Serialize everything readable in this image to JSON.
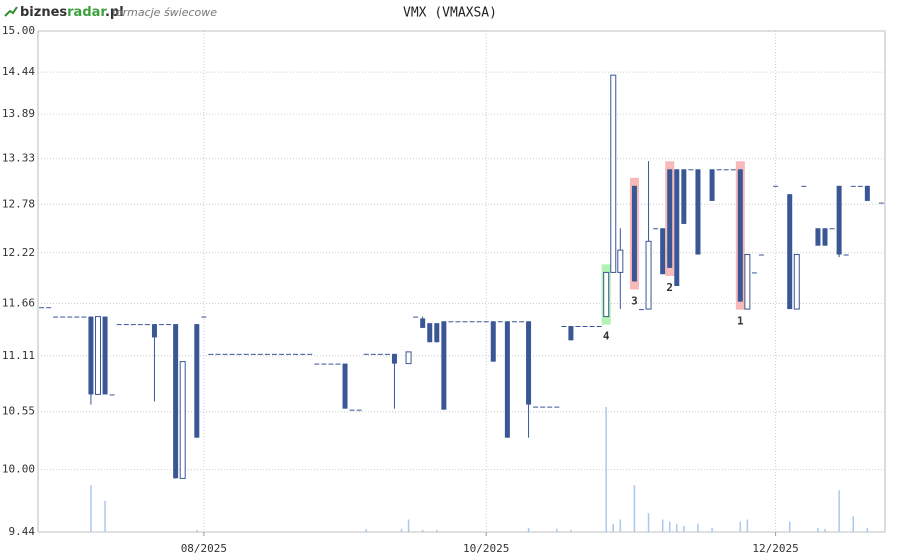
{
  "header": {
    "logo": [
      "biznes",
      "radar",
      ".pl"
    ],
    "subtitle": "formacje świecowe"
  },
  "chart_data": {
    "type": "candlestick",
    "title": "VMX (VMAXSA)",
    "yscale": "log",
    "ylim": [
      9.44,
      15.0
    ],
    "yticks": [
      {
        "value": 15.0,
        "label": "15.00"
      },
      {
        "value": 14.44,
        "label": "14.44"
      },
      {
        "value": 13.89,
        "label": "13.89"
      },
      {
        "value": 13.33,
        "label": "13.33"
      },
      {
        "value": 12.78,
        "label": "12.78"
      },
      {
        "value": 12.22,
        "label": "12.22"
      },
      {
        "value": 11.66,
        "label": "11.66"
      },
      {
        "value": 11.11,
        "label": "11.11"
      },
      {
        "value": 10.55,
        "label": "10.55"
      },
      {
        "value": 10.0,
        "label": "10.00"
      },
      {
        "value": 9.44,
        "label": "9.44"
      }
    ],
    "grid": true,
    "color": "#3a5795",
    "volume_color": "#a9c9ee",
    "categories": [
      null,
      null,
      null,
      null,
      null,
      null,
      null,
      null,
      null,
      null,
      null,
      null,
      null,
      null,
      null,
      null,
      null,
      null,
      null,
      null,
      null,
      null,
      null,
      "08/2025",
      null,
      null,
      null,
      null,
      null,
      null,
      null,
      null,
      null,
      null,
      null,
      null,
      null,
      null,
      null,
      null,
      null,
      null,
      null,
      null,
      null,
      null,
      null,
      null,
      null,
      null,
      null,
      null,
      null,
      null,
      null,
      null,
      null,
      null,
      null,
      null,
      null,
      null,
      null,
      "10/2025",
      null,
      null,
      null,
      null,
      null,
      null,
      null,
      null,
      null,
      null,
      null,
      null,
      null,
      null,
      null,
      null,
      null,
      null,
      null,
      null,
      null,
      null,
      null,
      null,
      null,
      null,
      null,
      null,
      null,
      null,
      null,
      null,
      null,
      null,
      null,
      null,
      null,
      null,
      null,
      null,
      "12/2025",
      null,
      null,
      null,
      null,
      null,
      null,
      null,
      null,
      null,
      null,
      null,
      null,
      null,
      null,
      null
    ],
    "ohlc": [
      [
        11.62,
        11.62,
        11.62,
        11.62
      ],
      [
        11.62,
        11.62,
        11.62,
        11.62
      ],
      [
        11.52,
        11.52,
        11.52,
        11.52
      ],
      [
        11.52,
        11.52,
        11.52,
        11.52
      ],
      [
        11.52,
        11.52,
        11.52,
        11.52
      ],
      [
        11.52,
        11.52,
        11.52,
        11.52
      ],
      [
        11.52,
        11.52,
        11.52,
        11.52
      ],
      [
        11.52,
        11.52,
        10.62,
        10.72
      ],
      [
        10.72,
        11.52,
        10.72,
        11.52
      ],
      [
        11.52,
        11.52,
        10.72,
        10.72
      ],
      [
        10.72,
        10.72,
        10.72,
        10.72
      ],
      [
        11.44,
        11.44,
        11.44,
        11.44
      ],
      [
        11.44,
        11.44,
        11.44,
        11.44
      ],
      [
        11.44,
        11.44,
        11.44,
        11.44
      ],
      [
        11.44,
        11.44,
        11.44,
        11.44
      ],
      [
        11.44,
        11.44,
        11.44,
        11.44
      ],
      [
        11.44,
        11.44,
        10.65,
        11.3
      ],
      [
        11.44,
        11.44,
        11.44,
        11.44
      ],
      [
        11.44,
        11.44,
        11.44,
        11.44
      ],
      [
        11.44,
        11.44,
        9.92,
        9.92
      ],
      [
        9.92,
        11.05,
        9.92,
        11.05
      ],
      null,
      [
        11.44,
        11.44,
        10.3,
        10.3
      ],
      [
        11.52,
        11.52,
        11.52,
        11.52
      ],
      [
        11.13,
        11.13,
        11.13,
        11.13
      ],
      [
        11.13,
        11.13,
        11.13,
        11.13
      ],
      [
        11.13,
        11.13,
        11.13,
        11.13
      ],
      [
        11.13,
        11.13,
        11.13,
        11.13
      ],
      [
        11.13,
        11.13,
        11.13,
        11.13
      ],
      [
        11.13,
        11.13,
        11.13,
        11.13
      ],
      [
        11.13,
        11.13,
        11.13,
        11.13
      ],
      [
        11.13,
        11.13,
        11.13,
        11.13
      ],
      [
        11.13,
        11.13,
        11.13,
        11.13
      ],
      [
        11.13,
        11.13,
        11.13,
        11.13
      ],
      [
        11.13,
        11.13,
        11.13,
        11.13
      ],
      [
        11.13,
        11.13,
        11.13,
        11.13
      ],
      [
        11.13,
        11.13,
        11.13,
        11.13
      ],
      [
        11.13,
        11.13,
        11.13,
        11.13
      ],
      [
        11.13,
        11.13,
        11.13,
        11.13
      ],
      [
        11.03,
        11.03,
        11.03,
        11.03
      ],
      [
        11.03,
        11.03,
        11.03,
        11.03
      ],
      [
        11.03,
        11.03,
        11.03,
        11.03
      ],
      [
        11.03,
        11.03,
        11.03,
        11.03
      ],
      [
        11.03,
        11.03,
        10.58,
        10.58
      ],
      [
        10.57,
        10.57,
        10.57,
        10.57
      ],
      [
        10.57,
        10.57,
        10.57,
        10.57
      ],
      [
        11.13,
        11.13,
        11.13,
        11.13
      ],
      [
        11.13,
        11.13,
        11.13,
        11.13
      ],
      [
        11.13,
        11.13,
        11.13,
        11.13
      ],
      [
        11.13,
        11.13,
        11.13,
        11.13
      ],
      [
        11.13,
        11.13,
        10.58,
        11.03
      ],
      null,
      [
        11.03,
        11.15,
        11.03,
        11.15
      ],
      [
        11.52,
        11.52,
        11.52,
        11.52
      ],
      [
        11.5,
        11.52,
        11.4,
        11.4
      ],
      [
        11.45,
        11.45,
        11.25,
        11.25
      ],
      [
        11.45,
        11.45,
        11.25,
        11.25
      ],
      [
        11.47,
        11.47,
        10.57,
        10.57
      ],
      [
        11.47,
        11.47,
        11.47,
        11.47
      ],
      [
        11.47,
        11.47,
        11.47,
        11.47
      ],
      [
        11.47,
        11.47,
        11.47,
        11.47
      ],
      [
        11.47,
        11.47,
        11.47,
        11.47
      ],
      [
        11.47,
        11.47,
        11.47,
        11.47
      ],
      [
        11.47,
        11.47,
        11.47,
        11.47
      ],
      [
        11.47,
        11.47,
        11.05,
        11.05
      ],
      [
        11.47,
        11.47,
        11.47,
        11.47
      ],
      [
        11.47,
        11.47,
        10.3,
        10.3
      ],
      [
        11.47,
        11.47,
        11.47,
        11.47
      ],
      [
        11.47,
        11.47,
        11.47,
        11.47
      ],
      [
        11.47,
        11.47,
        10.3,
        10.62
      ],
      [
        10.6,
        10.6,
        10.6,
        10.6
      ],
      [
        10.6,
        10.6,
        10.6,
        10.6
      ],
      [
        10.6,
        10.6,
        10.6,
        10.6
      ],
      [
        10.6,
        10.6,
        10.6,
        10.6
      ],
      [
        11.42,
        11.42,
        11.42,
        11.42
      ],
      [
        11.42,
        11.42,
        11.27,
        11.27
      ],
      [
        11.42,
        11.42,
        11.42,
        11.42
      ],
      [
        11.42,
        11.42,
        11.42,
        11.42
      ],
      [
        11.42,
        11.42,
        11.42,
        11.42
      ],
      [
        11.42,
        11.42,
        11.42,
        11.42
      ],
      [
        11.52,
        12.0,
        11.52,
        12.0
      ],
      [
        12.0,
        14.4,
        12.0,
        14.4
      ],
      [
        12.0,
        12.5,
        11.6,
        12.25
      ],
      null,
      [
        13.0,
        13.0,
        11.9,
        11.9
      ],
      [
        11.6,
        11.6,
        11.6,
        11.6
      ],
      [
        11.6,
        13.3,
        11.6,
        12.35
      ],
      [
        12.5,
        12.5,
        12.5,
        12.5
      ],
      [
        12.5,
        12.5,
        11.98,
        11.98
      ],
      [
        13.2,
        13.2,
        12.05,
        12.05
      ],
      [
        13.2,
        13.2,
        11.85,
        11.85
      ],
      [
        13.2,
        13.2,
        12.55,
        12.55
      ],
      [
        13.2,
        13.2,
        13.2,
        13.2
      ],
      [
        13.2,
        13.2,
        12.2,
        12.2
      ],
      null,
      [
        13.2,
        13.2,
        12.82,
        12.82
      ],
      [
        13.2,
        13.2,
        13.2,
        13.2
      ],
      [
        13.2,
        13.2,
        13.2,
        13.2
      ],
      [
        13.2,
        13.2,
        13.2,
        13.2
      ],
      [
        13.2,
        13.2,
        11.68,
        11.68
      ],
      [
        11.6,
        12.2,
        11.6,
        12.2
      ],
      [
        12.0,
        12.0,
        12.0,
        12.0
      ],
      [
        12.2,
        12.2,
        12.2,
        12.2
      ],
      null,
      [
        13.0,
        13.0,
        13.0,
        13.0
      ],
      null,
      [
        12.9,
        12.9,
        11.6,
        11.6
      ],
      [
        11.6,
        12.2,
        11.6,
        12.2
      ],
      [
        13.0,
        13.0,
        13.0,
        13.0
      ],
      null,
      [
        12.5,
        12.5,
        12.3,
        12.3
      ],
      [
        12.5,
        12.5,
        12.3,
        12.3
      ],
      [
        12.5,
        12.5,
        12.5,
        12.5
      ],
      [
        13.0,
        13.0,
        12.17,
        12.2
      ],
      [
        12.2,
        12.2,
        12.2,
        12.2
      ],
      [
        13.0,
        13.0,
        13.0,
        13.0
      ],
      [
        13.0,
        13.0,
        13.0,
        13.0
      ],
      [
        13.0,
        13.0,
        12.82,
        12.82
      ],
      null,
      [
        12.8,
        12.8,
        12.8,
        12.8
      ]
    ],
    "volume": [
      null,
      null,
      null,
      null,
      null,
      null,
      null,
      45,
      null,
      30,
      null,
      null,
      null,
      null,
      null,
      null,
      null,
      null,
      null,
      null,
      null,
      null,
      2,
      null,
      null,
      null,
      null,
      null,
      null,
      null,
      null,
      null,
      null,
      null,
      null,
      null,
      null,
      null,
      null,
      null,
      null,
      null,
      null,
      null,
      null,
      null,
      3,
      null,
      null,
      null,
      null,
      3,
      12,
      null,
      2,
      null,
      2,
      null,
      null,
      null,
      null,
      null,
      null,
      null,
      null,
      null,
      null,
      null,
      null,
      4,
      null,
      null,
      null,
      3,
      null,
      2,
      null,
      null,
      null,
      null,
      120,
      8,
      12,
      null,
      45,
      null,
      18,
      null,
      12,
      10,
      8,
      6,
      null,
      8,
      null,
      4,
      null,
      null,
      null,
      10,
      12,
      null,
      null,
      null,
      null,
      null,
      10,
      null,
      null,
      null,
      4,
      3,
      null,
      40,
      null,
      15,
      null,
      4,
      null,
      null
    ],
    "patterns": [
      {
        "label": "4",
        "index": 80,
        "color": "#9ef09e"
      },
      {
        "label": "3",
        "index": 84,
        "color": "#f6a8a8"
      },
      {
        "label": "2",
        "index": 89,
        "color": "#f6a8a8"
      },
      {
        "label": "1",
        "index": 99,
        "color": "#f6a8a8"
      }
    ]
  }
}
